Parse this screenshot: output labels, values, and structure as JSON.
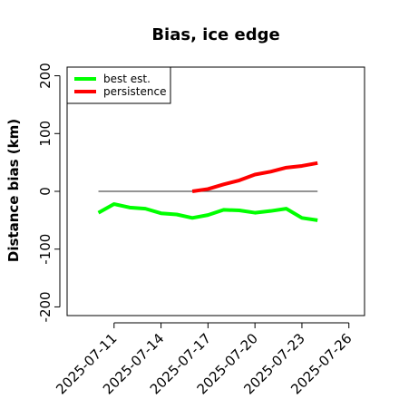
{
  "chart_data": {
    "type": "line",
    "title": "Bias, ice edge",
    "ylabel": "Distance bias (km)",
    "xlabel": "",
    "xlim": [
      "2025-07-08",
      "2025-07-27"
    ],
    "ylim": [
      -215,
      215
    ],
    "y_ticks": [
      -200,
      -100,
      0,
      100,
      200
    ],
    "x_ticks": [
      "2025-07-11",
      "2025-07-14",
      "2025-07-17",
      "2025-07-20",
      "2025-07-23",
      "2025-07-26"
    ],
    "grid": false,
    "legend_position": "top-left",
    "reference_line": {
      "y": 0,
      "x_range": [
        "2025-07-10",
        "2025-07-24"
      ],
      "color": "#555555"
    },
    "series": [
      {
        "name": "best est.",
        "color": "#00ff00",
        "points": [
          [
            "2025-07-10",
            -37
          ],
          [
            "2025-07-11",
            -22
          ],
          [
            "2025-07-12",
            -28
          ],
          [
            "2025-07-13",
            -30
          ],
          [
            "2025-07-14",
            -38
          ],
          [
            "2025-07-15",
            -40
          ],
          [
            "2025-07-16",
            -46
          ],
          [
            "2025-07-17",
            -41
          ],
          [
            "2025-07-18",
            -32
          ],
          [
            "2025-07-19",
            -33
          ],
          [
            "2025-07-20",
            -37
          ],
          [
            "2025-07-21",
            -34
          ],
          [
            "2025-07-22",
            -30
          ],
          [
            "2025-07-23",
            -46
          ],
          [
            "2025-07-24",
            -50
          ]
        ]
      },
      {
        "name": "persistence",
        "color": "#ff0000",
        "points": [
          [
            "2025-07-16",
            0
          ],
          [
            "2025-07-17",
            4
          ],
          [
            "2025-07-18",
            12
          ],
          [
            "2025-07-19",
            19
          ],
          [
            "2025-07-20",
            29
          ],
          [
            "2025-07-21",
            34
          ],
          [
            "2025-07-22",
            41
          ],
          [
            "2025-07-23",
            44
          ],
          [
            "2025-07-24",
            49
          ]
        ]
      }
    ]
  }
}
